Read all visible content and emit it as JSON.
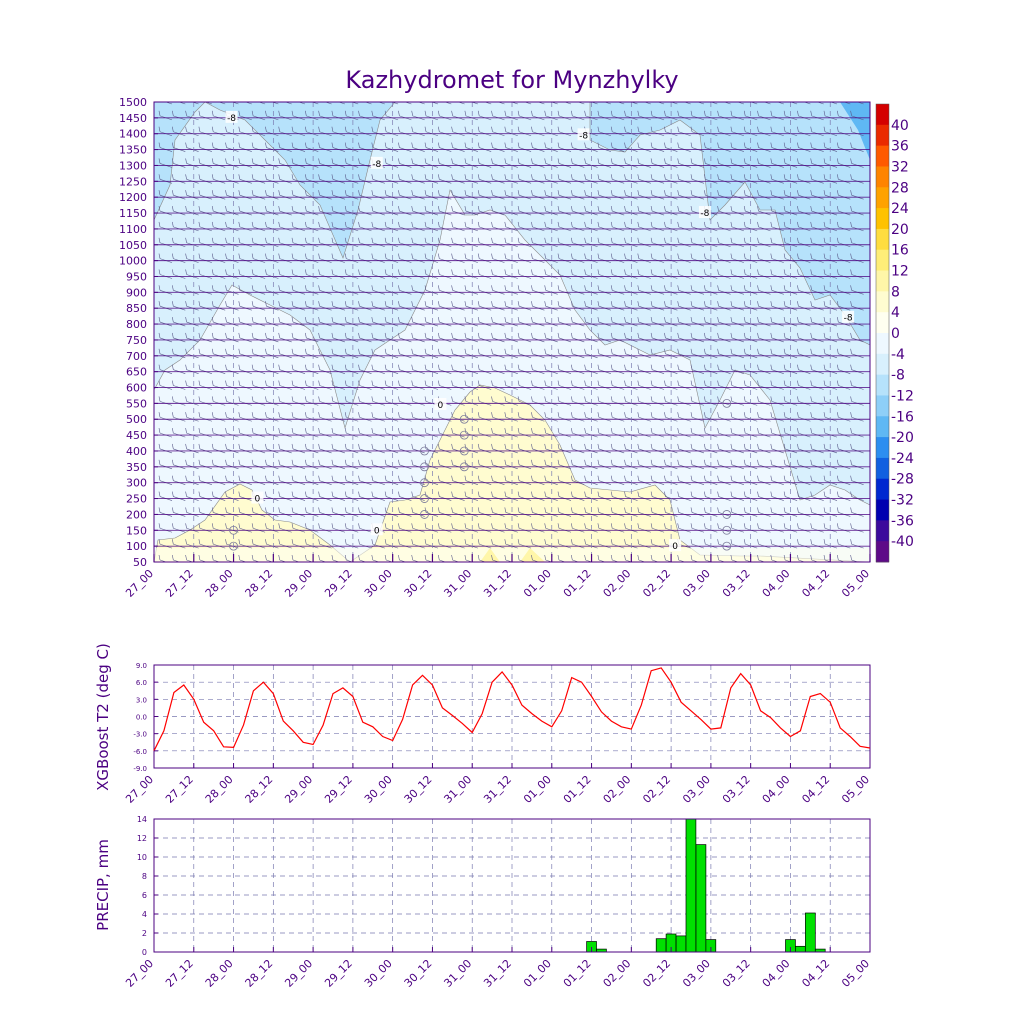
{
  "chart_data": [
    {
      "type": "heatmap",
      "title": "Kazhydromet for Mynzhylky",
      "xlabel": "",
      "ylabel": "",
      "x_ticks": [
        "27_00",
        "27_12",
        "28_00",
        "28_12",
        "29_00",
        "29_12",
        "30_00",
        "30_12",
        "31_00",
        "31_12",
        "01_00",
        "01_12",
        "02_00",
        "02_12",
        "03_00",
        "03_12",
        "04_00",
        "04_12",
        "05_00"
      ],
      "y_ticks": [
        50,
        100,
        150,
        200,
        250,
        300,
        350,
        400,
        450,
        500,
        550,
        600,
        650,
        700,
        750,
        800,
        850,
        900,
        950,
        1000,
        1050,
        1100,
        1150,
        1200,
        1250,
        1300,
        1350,
        1400,
        1450,
        1500
      ],
      "ylim": [
        50,
        1500
      ],
      "colorbar": {
        "labels": [
          40,
          36,
          32,
          28,
          24,
          20,
          16,
          12,
          8,
          4,
          0,
          -4,
          -8,
          -12,
          -16,
          -20,
          -24,
          -28,
          -32,
          -36,
          -40
        ],
        "colors": [
          "#d40000",
          "#ea2a00",
          "#ff5a00",
          "#ff8400",
          "#ffa200",
          "#ffc200",
          "#ffdd40",
          "#ffee78",
          "#fff6a8",
          "#fffcd0",
          "#fffff0",
          "#eef8ff",
          "#d8f0fd",
          "#b6e2fb",
          "#8ecff8",
          "#5fb8f4",
          "#2d8ef0",
          "#1160e0",
          "#0028d0",
          "#0000b0",
          "#3c0a9c",
          "#5e0a88"
        ]
      },
      "contour_labels": [
        "-8",
        "-8",
        "-8",
        "-8",
        "-8",
        "0",
        "0",
        "0",
        "0"
      ]
    },
    {
      "type": "line",
      "ylabel": "XGBoost T2 (deg C)",
      "xlabel": "",
      "x_ticks": [
        "27_00",
        "27_12",
        "28_00",
        "28_12",
        "29_00",
        "29_12",
        "30_00",
        "30_12",
        "31_00",
        "31_12",
        "01_00",
        "01_12",
        "02_00",
        "02_12",
        "03_00",
        "03_12",
        "04_00",
        "04_12",
        "05_00"
      ],
      "y_ticks": [
        "9.0",
        "6.0",
        "3.0",
        "0.0",
        "-3.0",
        "-6.0",
        "-9.0"
      ],
      "ylim": [
        -9,
        9
      ],
      "xlim": [
        0,
        18
      ],
      "series": [
        {
          "name": "T2",
          "color": "#ff0000",
          "x": [
            0,
            0.25,
            0.5,
            0.75,
            1,
            1.25,
            1.5,
            1.75,
            2,
            2.25,
            2.5,
            2.75,
            3,
            3.25,
            3.5,
            3.75,
            4,
            4.25,
            4.5,
            4.75,
            5,
            5.25,
            5.5,
            5.75,
            6,
            6.25,
            6.5,
            6.75,
            7,
            7.25,
            7.5,
            7.75,
            8,
            8.25,
            8.5,
            8.75,
            9,
            9.25,
            9.5,
            9.75,
            10,
            10.25,
            10.5,
            10.75,
            11,
            11.25,
            11.5,
            11.75,
            12,
            12.25,
            12.5,
            12.75,
            13,
            13.25,
            13.5,
            13.75,
            14,
            14.25,
            14.5,
            14.75,
            15,
            15.25,
            15.5,
            15.75,
            16,
            16.25,
            16.5,
            16.75,
            17,
            17.25,
            17.5,
            17.75,
            18
          ],
          "values": [
            -6.0,
            -2.5,
            4.2,
            5.5,
            3.0,
            -1.0,
            -2.5,
            -5.3,
            -5.4,
            -1.5,
            4.5,
            6.0,
            4.0,
            -0.8,
            -2.5,
            -4.5,
            -4.9,
            -1.5,
            4.0,
            5.0,
            3.5,
            -1.0,
            -1.8,
            -3.5,
            -4.2,
            -0.5,
            5.5,
            7.2,
            5.5,
            1.5,
            0.2,
            -1.2,
            -2.8,
            0.5,
            6.0,
            7.8,
            5.5,
            2.0,
            0.5,
            -0.8,
            -1.8,
            1.0,
            6.8,
            6.0,
            3.5,
            0.8,
            -0.8,
            -1.8,
            -2.2,
            2.0,
            8.0,
            8.5,
            6.0,
            2.5,
            1.0,
            -0.5,
            -2.2,
            -2.0,
            5.0,
            7.5,
            5.5,
            1.0,
            -0.2,
            -2.0,
            -3.5,
            -2.5,
            3.5,
            4.0,
            2.5,
            -2.0,
            -3.5,
            -5.2,
            -5.5
          ]
        }
      ]
    },
    {
      "type": "bar",
      "ylabel": "PRECIP, mm",
      "xlabel": "",
      "x_ticks": [
        "27_00",
        "27_12",
        "28_00",
        "28_12",
        "29_00",
        "29_12",
        "30_00",
        "30_12",
        "31_00",
        "31_12",
        "01_00",
        "01_12",
        "02_00",
        "02_12",
        "03_00",
        "03_12",
        "04_00",
        "04_12",
        "05_00"
      ],
      "y_ticks": [
        "14",
        "12",
        "10",
        "8",
        "6",
        "4",
        "2",
        "0"
      ],
      "ylim": [
        0,
        14
      ],
      "xlim": [
        0,
        18
      ],
      "color": "#00e000",
      "bars": [
        {
          "x": 11.0,
          "value": 1.1
        },
        {
          "x": 11.25,
          "value": 0.3
        },
        {
          "x": 12.75,
          "value": 1.4
        },
        {
          "x": 13.0,
          "value": 1.9
        },
        {
          "x": 13.25,
          "value": 1.7
        },
        {
          "x": 13.5,
          "value": 14.0
        },
        {
          "x": 13.75,
          "value": 11.3
        },
        {
          "x": 14.0,
          "value": 1.3
        },
        {
          "x": 16.0,
          "value": 1.3
        },
        {
          "x": 16.25,
          "value": 0.6
        },
        {
          "x": 16.5,
          "value": 4.1
        },
        {
          "x": 16.75,
          "value": 0.3
        }
      ]
    }
  ]
}
